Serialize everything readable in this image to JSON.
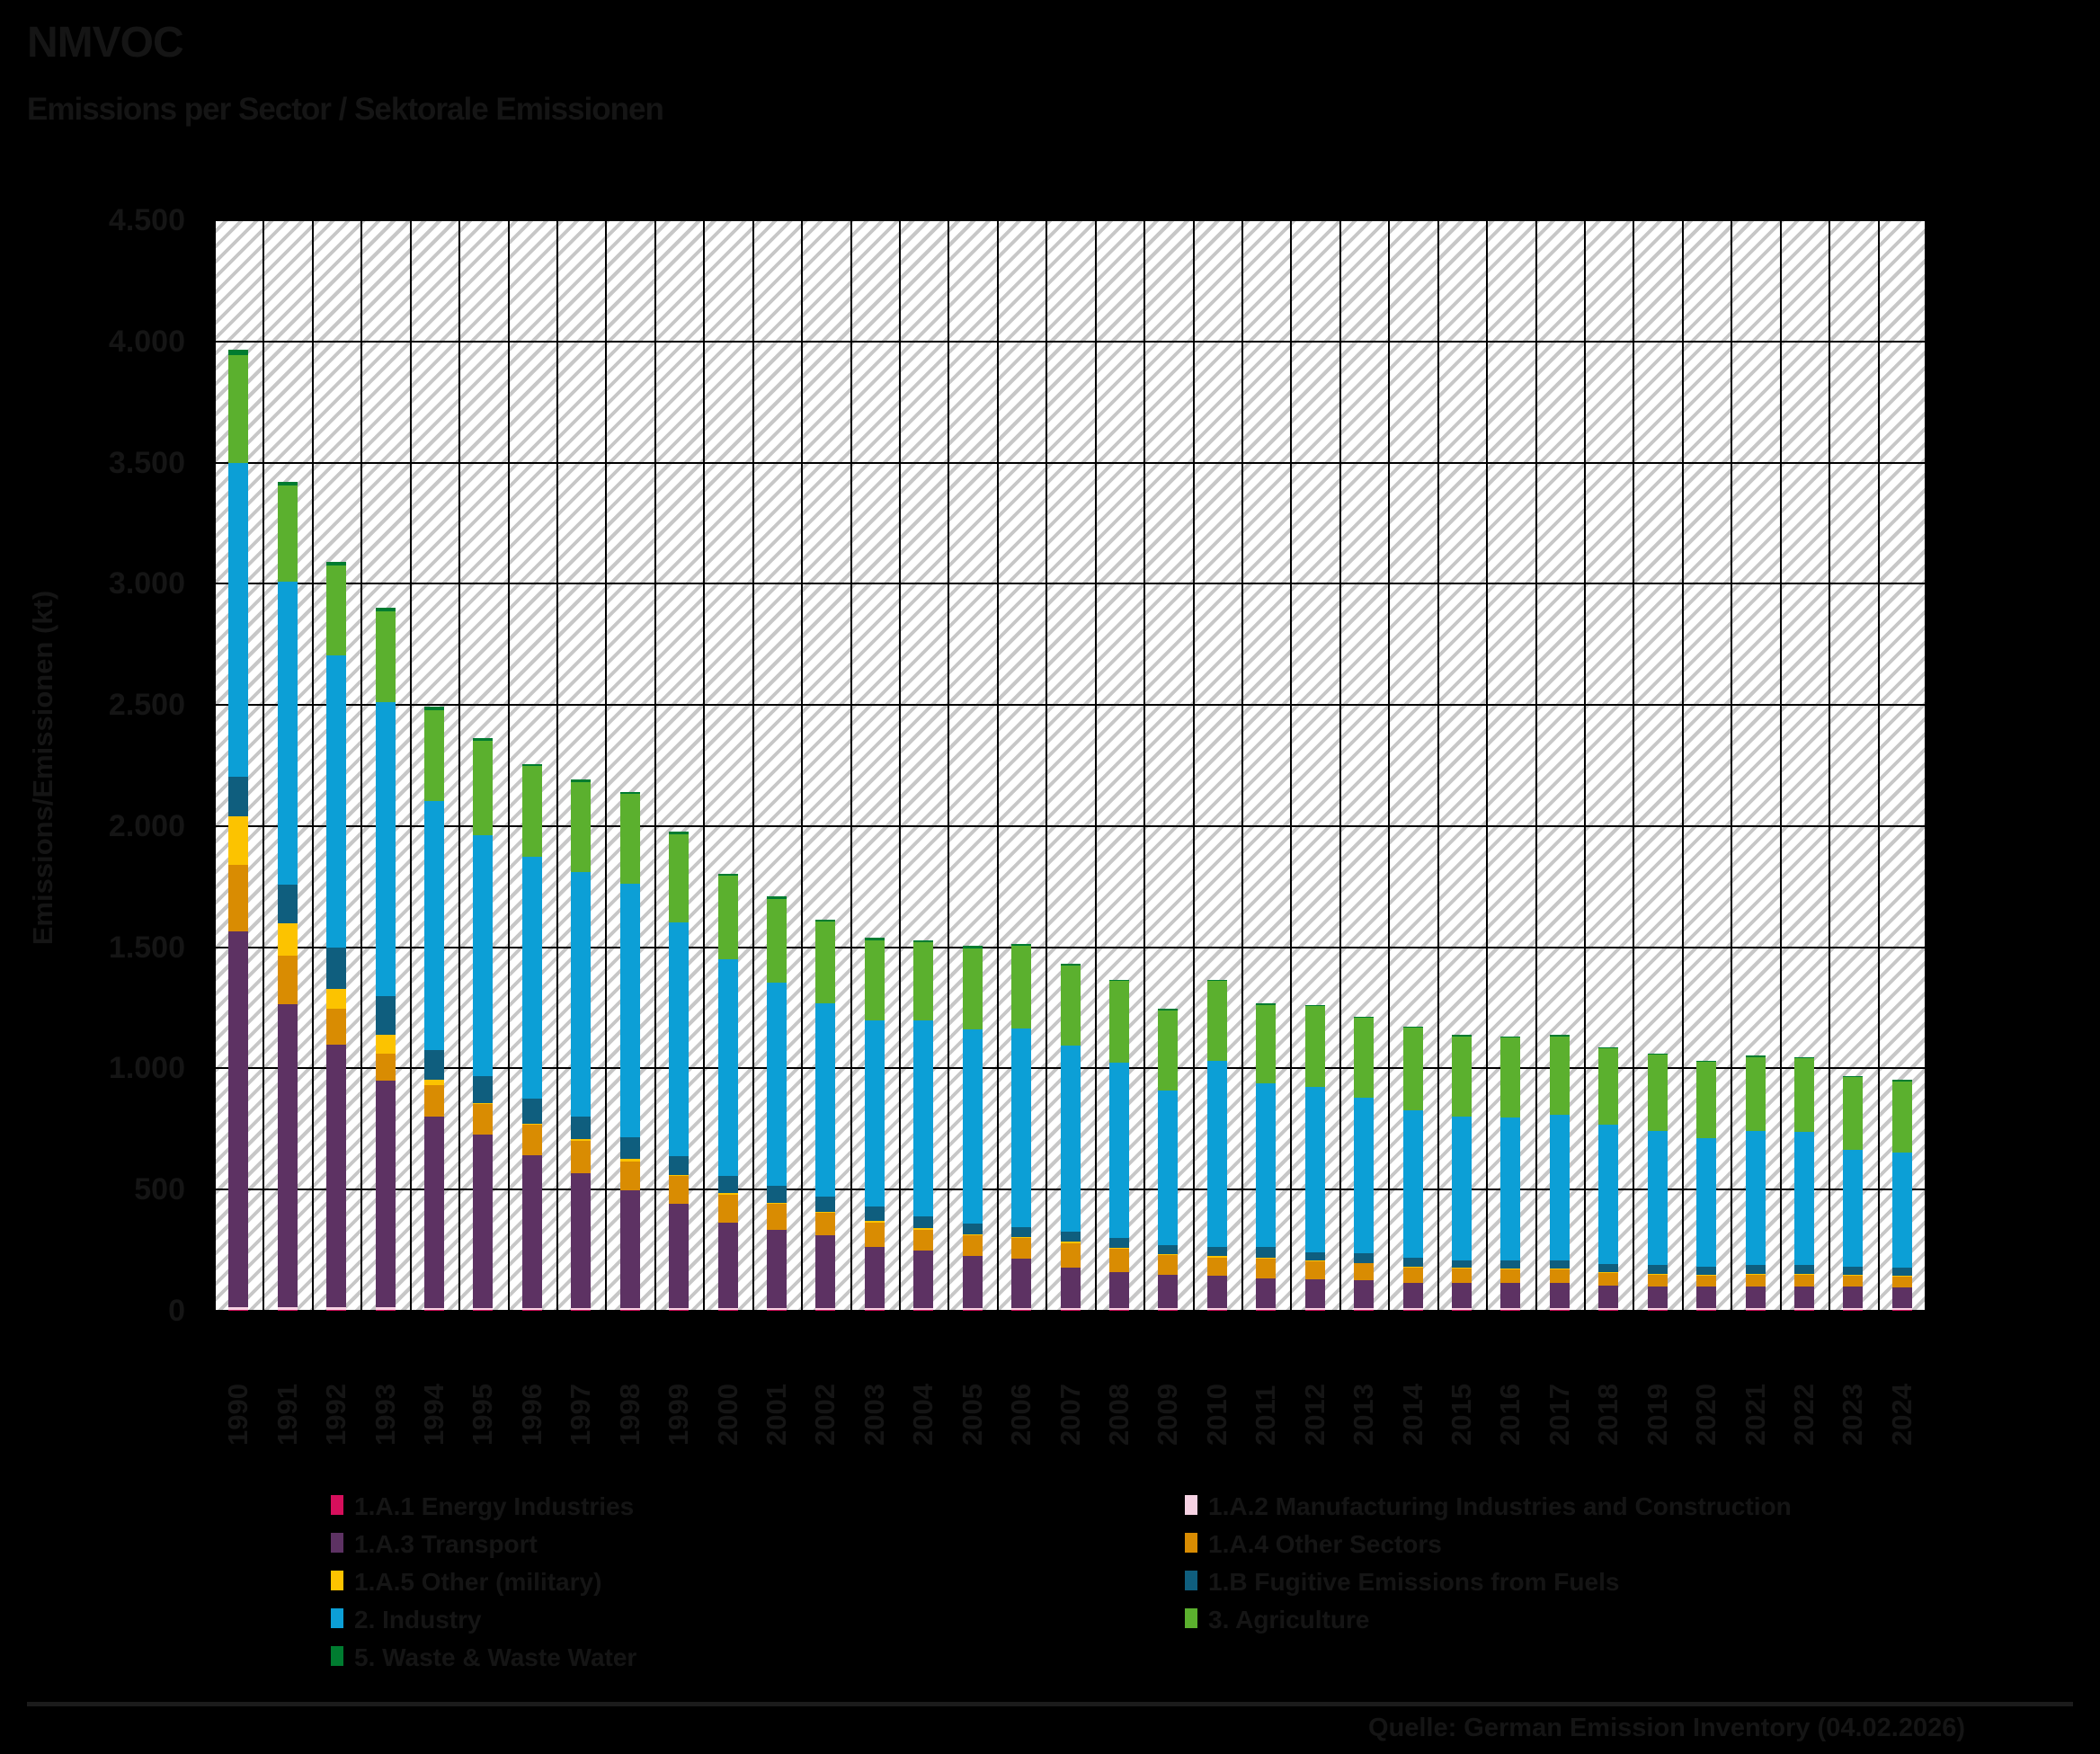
{
  "header": {
    "title": "NMVOC",
    "subtitle": "Emissions per Sector / Sektorale Emissionen"
  },
  "footer": {
    "source": "Quelle: German Emission Inventory (04.02.2026)"
  },
  "colors": {
    "background": "#000000",
    "ink": "#151515",
    "plot_background": "#ffffff",
    "hatch": "#c7c7c7",
    "grid": "#000000"
  },
  "chart_data": {
    "type": "bar",
    "stacked": true,
    "title": "NMVOC",
    "subtitle": "Emissions per Sector / Sektorale Emissionen",
    "ylabel": "Emissions/Emissionen (kt)",
    "xlabel": "",
    "ylim": [
      0,
      4500
    ],
    "grid": true,
    "legend_position": "bottom",
    "y_ticks": [
      {
        "value": 4500,
        "label": "4.500"
      },
      {
        "value": 4000,
        "label": "4.000"
      },
      {
        "value": 3500,
        "label": "3.500"
      },
      {
        "value": 3000,
        "label": "3.000"
      },
      {
        "value": 2500,
        "label": "2.500"
      },
      {
        "value": 2000,
        "label": "2.000"
      },
      {
        "value": 1500,
        "label": "1.500"
      },
      {
        "value": 1000,
        "label": "1.000"
      },
      {
        "value": 500,
        "label": "500"
      },
      {
        "value": 0,
        "label": "0"
      }
    ],
    "categories": [
      "1990",
      "1991",
      "1992",
      "1993",
      "1994",
      "1995",
      "1996",
      "1997",
      "1998",
      "1999",
      "2000",
      "2001",
      "2002",
      "2003",
      "2004",
      "2005",
      "2006",
      "2007",
      "2008",
      "2009",
      "2010",
      "2011",
      "2012",
      "2013",
      "2014",
      "2015",
      "2016",
      "2017",
      "2018",
      "2019",
      "2020",
      "2021",
      "2022",
      "2023",
      "2024"
    ],
    "series": [
      {
        "name": "1.A.1 Energy Industries",
        "color": "#d60f5c",
        "values": [
          3,
          3,
          3,
          3,
          2,
          2,
          2,
          2,
          2,
          2,
          2,
          2,
          2,
          2,
          2,
          2,
          2,
          2,
          2,
          2,
          2,
          2,
          2,
          2,
          2,
          2,
          2,
          2,
          2,
          2,
          2,
          2,
          2,
          2,
          2
        ]
      },
      {
        "name": "1.A.2 Manufacturing Industries and Construction",
        "color": "#f6d2e3",
        "values": [
          12,
          12,
          12,
          12,
          10,
          10,
          10,
          10,
          10,
          10,
          8,
          8,
          8,
          8,
          8,
          8,
          8,
          8,
          8,
          8,
          8,
          8,
          8,
          8,
          8,
          8,
          8,
          8,
          8,
          8,
          8,
          8,
          8,
          8,
          8
        ]
      },
      {
        "name": "1.A.3 Transport",
        "color": "#5d3263",
        "values": [
          1550,
          1250,
          1085,
          935,
          790,
          715,
          630,
          555,
          485,
          430,
          355,
          325,
          300,
          255,
          240,
          215,
          205,
          170,
          150,
          140,
          135,
          125,
          120,
          115,
          105,
          105,
          105,
          105,
          95,
          90,
          90,
          90,
          90,
          90,
          85
        ]
      },
      {
        "name": "1.A.4 Other Sectors",
        "color": "#d98c02",
        "values": [
          275,
          200,
          145,
          110,
          130,
          125,
          125,
          135,
          120,
          115,
          115,
          105,
          95,
          100,
          85,
          85,
          85,
          100,
          95,
          80,
          75,
          80,
          75,
          70,
          65,
          60,
          55,
          55,
          50,
          50,
          45,
          50,
          50,
          45,
          45
        ]
      },
      {
        "name": "1.A.5 Other (military)",
        "color": "#fcc300",
        "values": [
          200,
          135,
          85,
          80,
          20,
          5,
          5,
          5,
          10,
          5,
          5,
          5,
          5,
          5,
          5,
          5,
          5,
          5,
          5,
          5,
          5,
          3,
          3,
          3,
          3,
          3,
          3,
          3,
          3,
          3,
          3,
          3,
          3,
          3,
          3
        ]
      },
      {
        "name": "1.B Fugitive Emissions from Fuels",
        "color": "#0f5e7e",
        "values": [
          165,
          160,
          170,
          160,
          125,
          110,
          105,
          95,
          90,
          75,
          70,
          70,
          60,
          60,
          50,
          45,
          40,
          40,
          40,
          35,
          40,
          45,
          35,
          40,
          35,
          30,
          35,
          35,
          35,
          35,
          35,
          35,
          35,
          35,
          35
        ]
      },
      {
        "name": "2. Industry",
        "color": "#0c9fd6",
        "values": [
          1295,
          1250,
          1205,
          1210,
          1025,
          995,
          995,
          1010,
          1045,
          965,
          895,
          840,
          800,
          770,
          810,
          800,
          820,
          770,
          725,
          640,
          765,
          675,
          680,
          640,
          610,
          595,
          590,
          600,
          575,
          555,
          530,
          555,
          550,
          480,
          475
        ]
      },
      {
        "name": "3. Agriculture",
        "color": "#5bb02e",
        "values": [
          445,
          395,
          370,
          375,
          375,
          390,
          375,
          370,
          370,
          365,
          345,
          345,
          335,
          330,
          320,
          335,
          340,
          330,
          335,
          330,
          330,
          325,
          335,
          330,
          340,
          330,
          330,
          325,
          315,
          315,
          315,
          305,
          305,
          300,
          295
        ]
      },
      {
        "name": "5. Waste & Waste Water",
        "color": "#007c30",
        "values": [
          20,
          15,
          15,
          15,
          15,
          10,
          10,
          10,
          10,
          10,
          10,
          10,
          10,
          10,
          10,
          10,
          8,
          8,
          7,
          7,
          7,
          7,
          5,
          5,
          5,
          5,
          5,
          5,
          5,
          5,
          5,
          5,
          5,
          5,
          5
        ]
      }
    ],
    "legend_columns": [
      [
        0,
        2,
        4,
        6,
        8
      ],
      [
        1,
        3,
        5,
        7
      ]
    ]
  }
}
